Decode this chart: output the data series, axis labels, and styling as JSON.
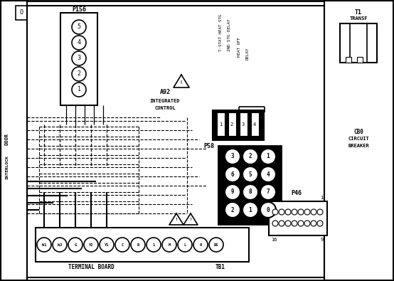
{
  "bg_color": "#ffffff",
  "fig_width": 5.54,
  "fig_height": 3.95,
  "dpi": 100,
  "p156_nums": [
    "5",
    "4",
    "3",
    "2",
    "1"
  ],
  "p58_nums": [
    [
      "3",
      "2",
      "1"
    ],
    [
      "6",
      "5",
      "4"
    ],
    [
      "9",
      "8",
      "7"
    ],
    [
      "2",
      "1",
      "0"
    ]
  ],
  "tb_labels": [
    "W1",
    "W2",
    "G",
    "Y2",
    "Y1",
    "C",
    "R",
    "1",
    "M",
    "L",
    "0",
    "DS"
  ]
}
